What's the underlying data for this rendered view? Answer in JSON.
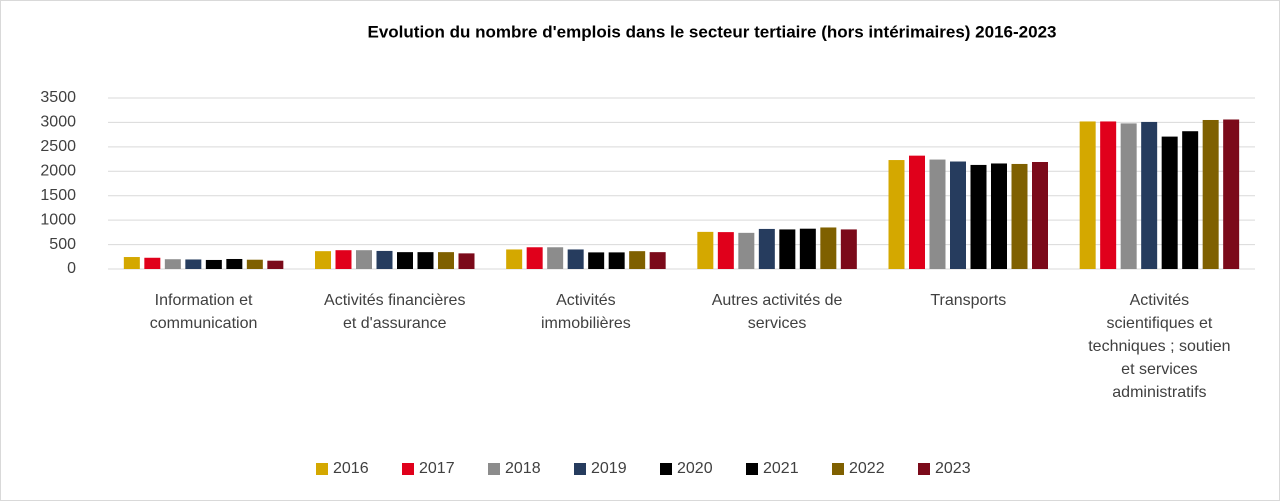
{
  "chart_data": {
    "type": "bar",
    "title": "Evolution du nombre d'emplois dans le secteur tertiaire (hors intérimaires) 2016-2023",
    "categories": [
      "Information et communication",
      "Activités financières et d'assurance",
      "Activités immobilières",
      "Autres activités de services",
      "Transports",
      "Activités scientifiques et techniques ; soutien et services administratifs"
    ],
    "series": [
      {
        "name": "2016",
        "color": "#d4a800",
        "values": [
          245,
          365,
          400,
          760,
          2230,
          3020
        ]
      },
      {
        "name": "2017",
        "color": "#e0001b",
        "values": [
          230,
          385,
          445,
          755,
          2320,
          3020
        ]
      },
      {
        "name": "2018",
        "color": "#8c8c8c",
        "values": [
          200,
          385,
          445,
          740,
          2240,
          2980
        ]
      },
      {
        "name": "2019",
        "color": "#263c5e",
        "values": [
          195,
          370,
          400,
          820,
          2200,
          3010
        ]
      },
      {
        "name": "2020",
        "color": "#000000",
        "values": [
          185,
          345,
          340,
          810,
          2130,
          2710
        ]
      },
      {
        "name": "2021",
        "color": "#000000",
        "values": [
          205,
          345,
          340,
          825,
          2160,
          2820
        ]
      },
      {
        "name": "2022",
        "color": "#7f6000",
        "values": [
          190,
          345,
          365,
          850,
          2150,
          3050
        ]
      },
      {
        "name": "2023",
        "color": "#7b0a1a",
        "values": [
          170,
          320,
          345,
          810,
          2190,
          3060
        ]
      }
    ],
    "ylim": [
      0,
      3500
    ],
    "yticks": [
      0,
      500,
      1000,
      1500,
      2000,
      2500,
      3000,
      3500
    ],
    "grid": true,
    "legend": "bottom"
  }
}
